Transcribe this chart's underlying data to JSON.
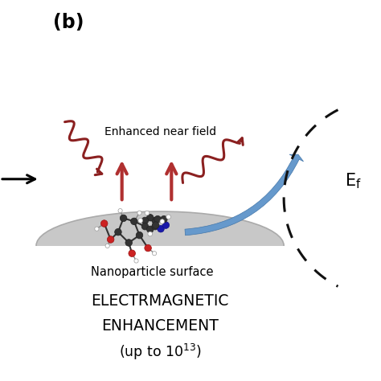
{
  "title_label": "(b)",
  "label_enhanced": "Enhanced near field",
  "label_nano": "Nanoparticle surface",
  "label_em1": "ELECTRMAGNETIC",
  "label_em2": "ENHANCEMENT",
  "label_em3": "(up to 10$^{13}$)",
  "arrow_color": "#b03030",
  "wavy_color": "#8b2020",
  "nanoparticle_color": "#c8c8c8",
  "nanoparticle_edge": "#aaaaaa",
  "bg_color": "#ffffff",
  "blue_arrow_color": "#6699cc",
  "blue_arrow_dark": "#4477aa",
  "dashed_color": "#111111",
  "text_color": "#000000",
  "xlim": [
    0,
    10
  ],
  "ylim": [
    0,
    10
  ],
  "figsize": [
    4.74,
    4.74
  ],
  "dpi": 100
}
